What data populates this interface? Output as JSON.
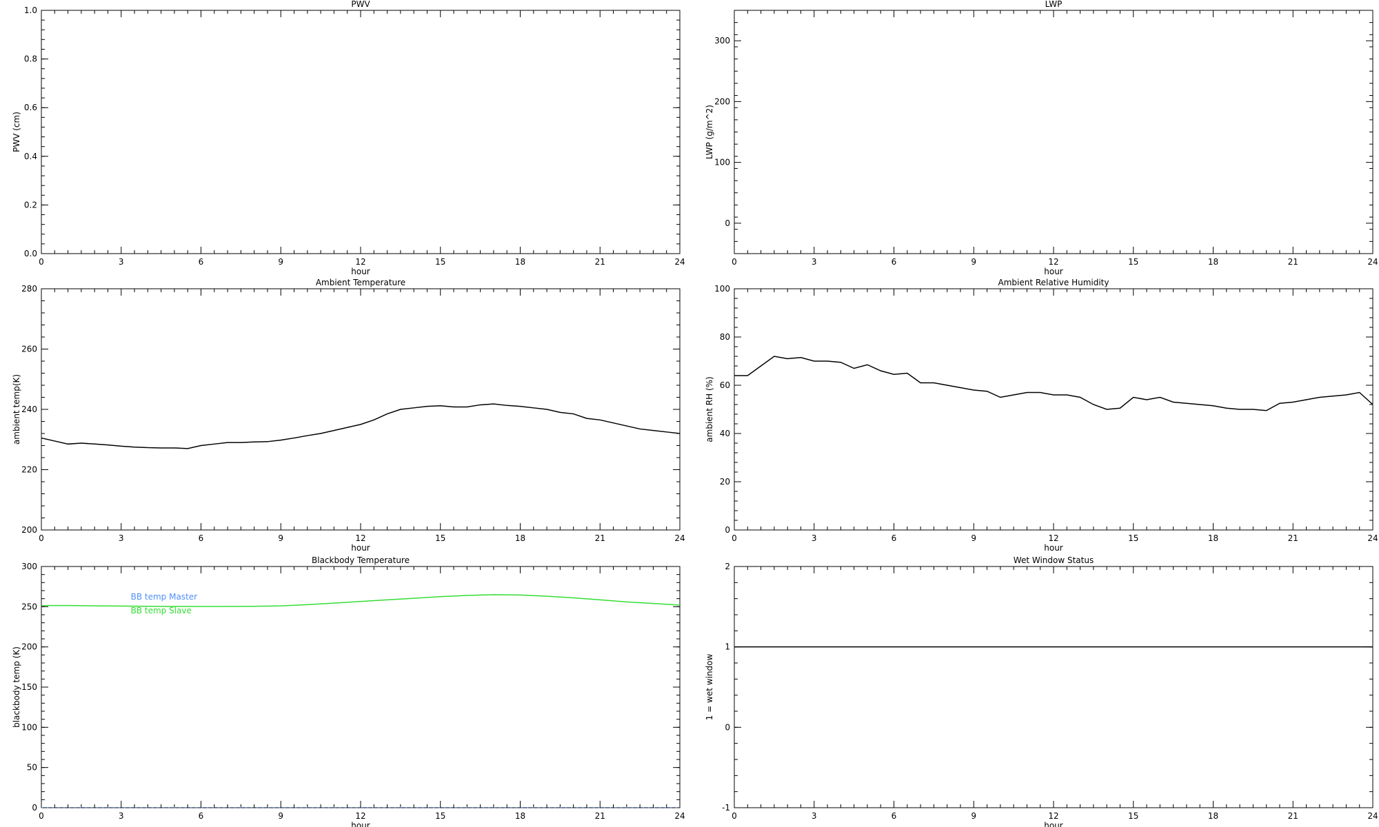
{
  "chart_data": [
    {
      "type": "line",
      "title": "PWV",
      "xlabel": "hour",
      "ylabel": "PWV (cm)",
      "xlim": [
        0,
        24
      ],
      "xticks": [
        0,
        3,
        6,
        9,
        12,
        15,
        18,
        21,
        24
      ],
      "ylim": [
        0,
        1
      ],
      "yticks": [
        {
          "value": 0,
          "label": "0.0"
        },
        {
          "value": 0.2,
          "label": "0.2"
        },
        {
          "value": 0.4,
          "label": "0.4"
        },
        {
          "value": 0.6,
          "label": "0.6"
        },
        {
          "value": 0.8,
          "label": "0.8"
        },
        {
          "value": 1,
          "label": "1.0"
        }
      ]
    },
    {
      "type": "line",
      "title": "LWP",
      "xlabel": "hour",
      "ylabel": "LWP (g/m^2)",
      "xlim": [
        0,
        24
      ],
      "xticks": [
        0,
        3,
        6,
        9,
        12,
        15,
        18,
        21,
        24
      ],
      "ylim": [
        -50,
        350
      ],
      "yticks": [
        0,
        100,
        200,
        300
      ]
    },
    {
      "type": "line",
      "title": "Ambient Temperature",
      "xlabel": "hour",
      "ylabel": "ambient temp(K)",
      "xlim": [
        0,
        24
      ],
      "xticks": [
        0,
        3,
        6,
        9,
        12,
        15,
        18,
        21,
        24
      ],
      "ylim": [
        200,
        280
      ],
      "yticks": [
        200,
        220,
        240,
        260,
        280
      ],
      "x": [
        0,
        0.5,
        1,
        1.5,
        2,
        2.5,
        3,
        3.5,
        4,
        4.5,
        5,
        5.5,
        6,
        6.5,
        7,
        7.5,
        8,
        8.5,
        9,
        9.5,
        10,
        10.5,
        11,
        11.5,
        12,
        12.5,
        13,
        13.5,
        14,
        14.5,
        15,
        15.5,
        16,
        16.5,
        17,
        17.5,
        18,
        18.5,
        19,
        19.5,
        20,
        20.5,
        21,
        21.5,
        22,
        22.5,
        23,
        23.5,
        24
      ],
      "series": [
        {
          "color": "#000000",
          "values": [
            230.5,
            229.5,
            228.5,
            228.8,
            228.5,
            228.2,
            227.8,
            227.5,
            227.3,
            227.2,
            227.2,
            227.0,
            228,
            228.5,
            229,
            229,
            229.2,
            229.3,
            229.8,
            230.5,
            231.3,
            232,
            233,
            234,
            235,
            236.5,
            238.5,
            240,
            240.5,
            241,
            241.2,
            240.8,
            240.8,
            241.5,
            241.8,
            241.3,
            241,
            240.5,
            240,
            239,
            238.5,
            237,
            236.5,
            235.5,
            234.5,
            233.5,
            233,
            232.5,
            232
          ]
        }
      ]
    },
    {
      "type": "line",
      "title": "Ambient Relative Humidity",
      "xlabel": "hour",
      "ylabel": "ambient RH (%)",
      "xlim": [
        0,
        24
      ],
      "xticks": [
        0,
        3,
        6,
        9,
        12,
        15,
        18,
        21,
        24
      ],
      "ylim": [
        0,
        100
      ],
      "yticks": [
        0,
        20,
        40,
        60,
        80,
        100
      ],
      "x": [
        0,
        0.5,
        1,
        1.5,
        2,
        2.5,
        3,
        3.5,
        4,
        4.5,
        5,
        5.5,
        6,
        6.5,
        7,
        7.5,
        8,
        8.5,
        9,
        9.5,
        10,
        10.5,
        11,
        11.5,
        12,
        12.5,
        13,
        13.5,
        14,
        14.5,
        15,
        15.5,
        16,
        16.5,
        17,
        17.5,
        18,
        18.5,
        19,
        19.5,
        20,
        20.5,
        21,
        21.5,
        22,
        22.5,
        23,
        23.5,
        24
      ],
      "series": [
        {
          "color": "#000000",
          "values": [
            64,
            64,
            68,
            72,
            71,
            71.5,
            70,
            70,
            69.5,
            67,
            68.5,
            66,
            64.5,
            65,
            61,
            61,
            60,
            59,
            58,
            57.5,
            55,
            56,
            57,
            57,
            56,
            56,
            55,
            52,
            50,
            50.5,
            55,
            54,
            55,
            53,
            52.5,
            52,
            51.5,
            50.5,
            50,
            50,
            49.5,
            52.5,
            53,
            54,
            55,
            55.5,
            56,
            57,
            52
          ]
        }
      ]
    },
    {
      "type": "line",
      "title": "Blackbody Temperature",
      "xlabel": "hour",
      "ylabel": "blackbody temp (K)",
      "xlim": [
        0,
        24
      ],
      "xticks": [
        0,
        3,
        6,
        9,
        12,
        15,
        18,
        21,
        24
      ],
      "ylim": [
        0,
        300
      ],
      "yticks": [
        0,
        50,
        100,
        150,
        200,
        250,
        300
      ],
      "legend": "upper left",
      "x": [
        0,
        1,
        2,
        3,
        4,
        5,
        6,
        7,
        8,
        9,
        10,
        11,
        12,
        13,
        14,
        15,
        16,
        17,
        18,
        19,
        20,
        21,
        22,
        23,
        24
      ],
      "series": [
        {
          "name": "BB temp Master",
          "color": "#4f8ff7",
          "values": [
            0,
            0,
            0,
            0,
            0,
            0,
            0,
            0,
            0,
            0,
            0,
            0,
            0,
            0,
            0,
            0,
            0,
            0,
            0,
            0,
            0,
            0,
            0,
            0,
            0
          ]
        },
        {
          "name": "BB temp Slave",
          "color": "#33dd33",
          "values": [
            251.5,
            251.5,
            251,
            250.8,
            250.5,
            250.3,
            250.3,
            250.3,
            250.5,
            251,
            252.5,
            254.5,
            256.5,
            258.5,
            260.5,
            262.5,
            264,
            265,
            264.5,
            263,
            261,
            258.5,
            256,
            254,
            252
          ]
        }
      ]
    },
    {
      "type": "line",
      "title": "Wet Window Status",
      "xlabel": "hour",
      "ylabel": "1 = wet window",
      "xlim": [
        0,
        24
      ],
      "xticks": [
        0,
        3,
        6,
        9,
        12,
        15,
        18,
        21,
        24
      ],
      "ylim": [
        -1,
        2
      ],
      "yticks": [
        -1,
        0,
        1,
        2
      ],
      "x": [
        0,
        24
      ],
      "series": [
        {
          "color": "#000000",
          "values": [
            1,
            1
          ]
        }
      ]
    }
  ]
}
